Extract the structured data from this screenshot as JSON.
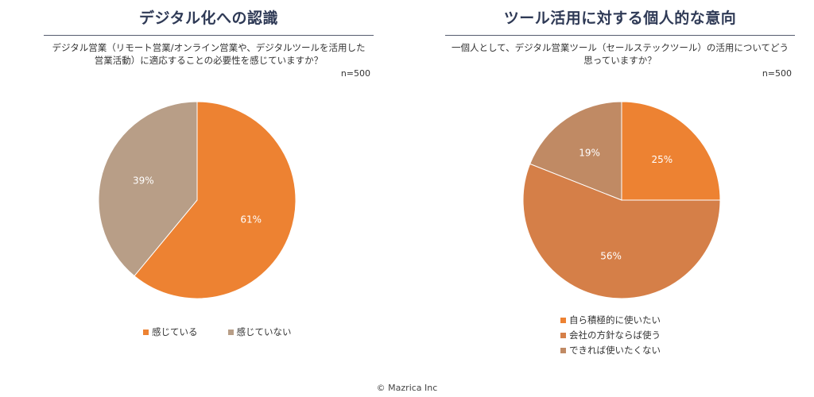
{
  "left": {
    "title": "デジタル化への認識",
    "question": "デジタル営業（リモート営業/オンライン営業や、デジタルツールを活用した営業活動）に適応することの必要性を感じていますか？",
    "n_label": "n=500"
  },
  "right": {
    "title": "ツール活用に対する個人的な意向",
    "question": "一個人として、デジタル営業ツール（セールステックツール）の活用についてどう思っていますか？",
    "n_label": "n=500"
  },
  "footer": "© Mazrica Inc",
  "chart_data": [
    {
      "type": "pie",
      "title": "デジタル化への認識",
      "categories": [
        "感じている",
        "感じていない"
      ],
      "values": [
        61,
        39
      ],
      "labels": [
        "61%",
        "39%"
      ],
      "colors": [
        "#ed8232",
        "#b89e87"
      ],
      "legend_position": "bottom"
    },
    {
      "type": "pie",
      "title": "ツール活用に対する個人的な意向",
      "categories": [
        "自ら積極的に使いたい",
        "会社の方針ならば使う",
        "できれば使いたくない"
      ],
      "values": [
        25,
        56,
        19
      ],
      "labels": [
        "25%",
        "56%",
        "19%"
      ],
      "colors": [
        "#ed8232",
        "#d57f48",
        "#c08a64"
      ],
      "legend_position": "bottom"
    }
  ]
}
